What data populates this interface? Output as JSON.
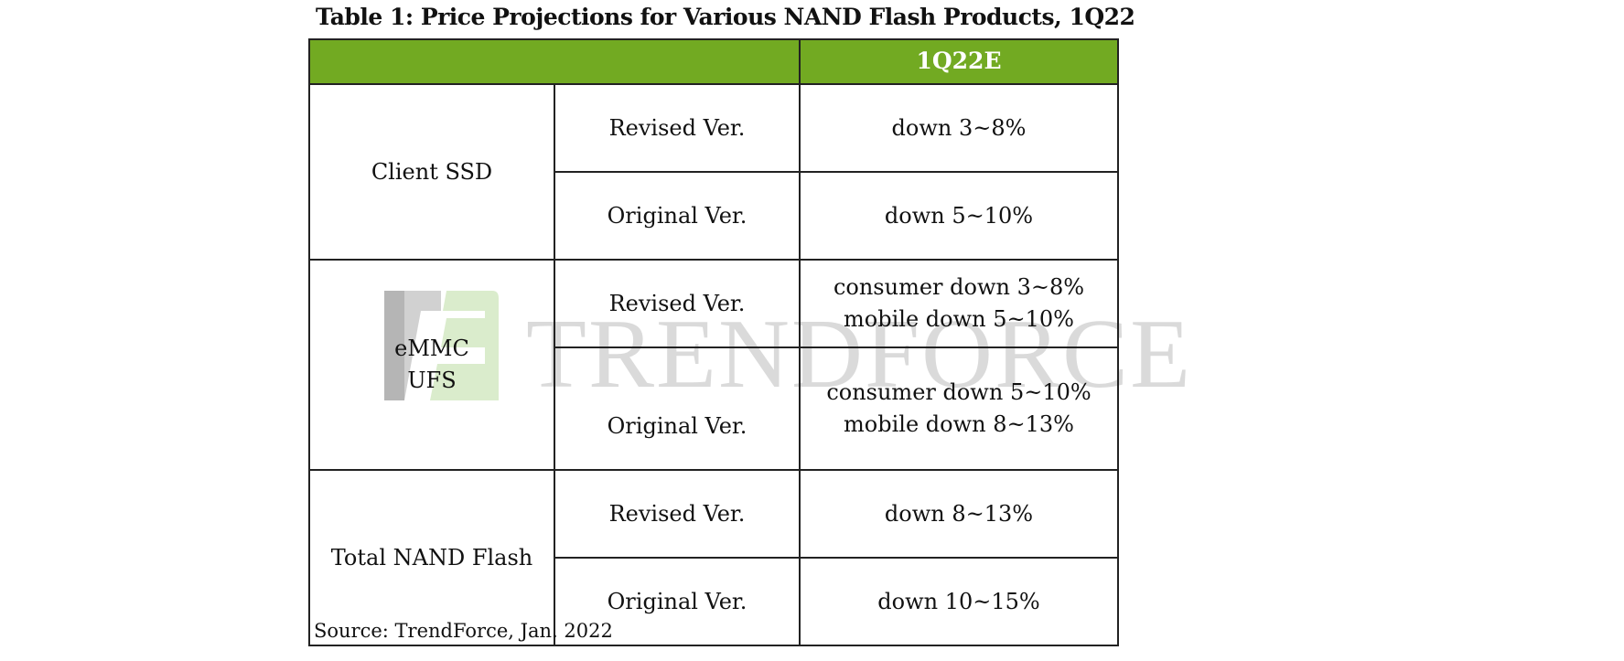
{
  "title": "Table 1: Price Projections for Various NAND Flash Products, 1Q22",
  "header": {
    "period": "1Q22E"
  },
  "groups": [
    {
      "product": "Client SSD",
      "rows": [
        {
          "version": "Revised Ver.",
          "lines": [
            "down 3~8%"
          ]
        },
        {
          "version": "Original Ver.",
          "lines": [
            "down 5~10%"
          ]
        }
      ]
    },
    {
      "product_lines": [
        "eMMC",
        "UFS"
      ],
      "rows": [
        {
          "version": "Revised Ver.",
          "lines": [
            "consumer down 3~8%",
            "mobile down 5~10%"
          ]
        },
        {
          "version": "Original Ver.",
          "lines": [
            "consumer down 5~10%",
            "mobile down 8~13%"
          ]
        }
      ]
    },
    {
      "product": "Total NAND Flash",
      "rows": [
        {
          "version": "Revised Ver.",
          "lines": [
            "down 8~13%"
          ]
        },
        {
          "version": "Original Ver.",
          "lines": [
            "down 10~15%"
          ]
        }
      ]
    }
  ],
  "watermark": "TRENDFORCE",
  "source": "Source: TrendForce, Jan. 2022",
  "colors": {
    "header_green": "#72aa22",
    "border": "#222222"
  }
}
